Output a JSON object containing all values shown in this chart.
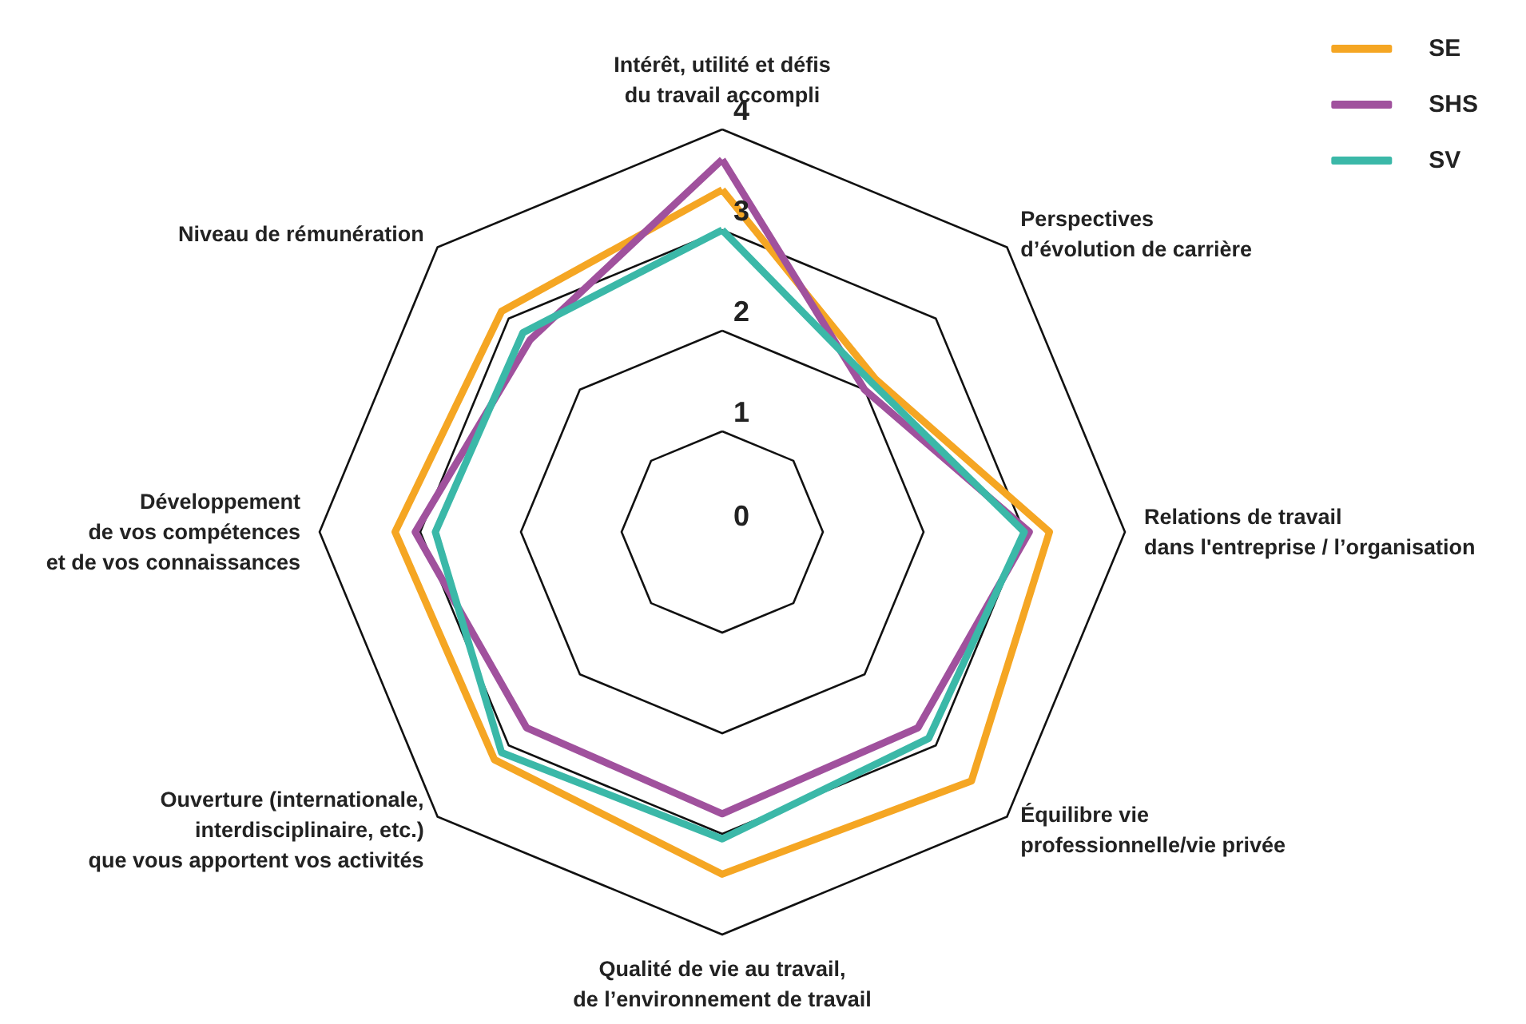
{
  "chart_data": {
    "type": "radar",
    "categories": [
      "Intérêt, utilité et défis\ndu travail accompli",
      "Perspectives\nd’évolution de carrière",
      "Relations de travail\ndans l'entreprise / l’organisation",
      "Équilibre vie\nprofessionnelle/vie privée",
      "Qualité de vie au travail,\nde l’environnement de travail",
      "Ouverture (internationale,\ninterdisciplinaire, etc.)\nque vous apportent vos activités",
      "Développement\nde vos compétences\net de vos connaissances",
      "Niveau de rémunération"
    ],
    "series": [
      {
        "name": "SE",
        "color": "#f5a623",
        "values": [
          3.4,
          2.15,
          3.25,
          3.5,
          3.4,
          3.2,
          3.25,
          3.1
        ]
      },
      {
        "name": "SHS",
        "color": "#a0519d",
        "values": [
          3.7,
          2.0,
          3.05,
          2.75,
          2.8,
          2.75,
          3.05,
          2.7
        ]
      },
      {
        "name": "SV",
        "color": "#3bb8a8",
        "values": [
          3.0,
          2.1,
          3.0,
          2.9,
          3.05,
          3.1,
          2.85,
          2.8
        ]
      }
    ],
    "ylim": [
      0,
      4
    ],
    "yticks": [
      0,
      1,
      2,
      3,
      4
    ],
    "grid": true,
    "legend": "top right",
    "marker": "none",
    "line_style": "solid"
  }
}
